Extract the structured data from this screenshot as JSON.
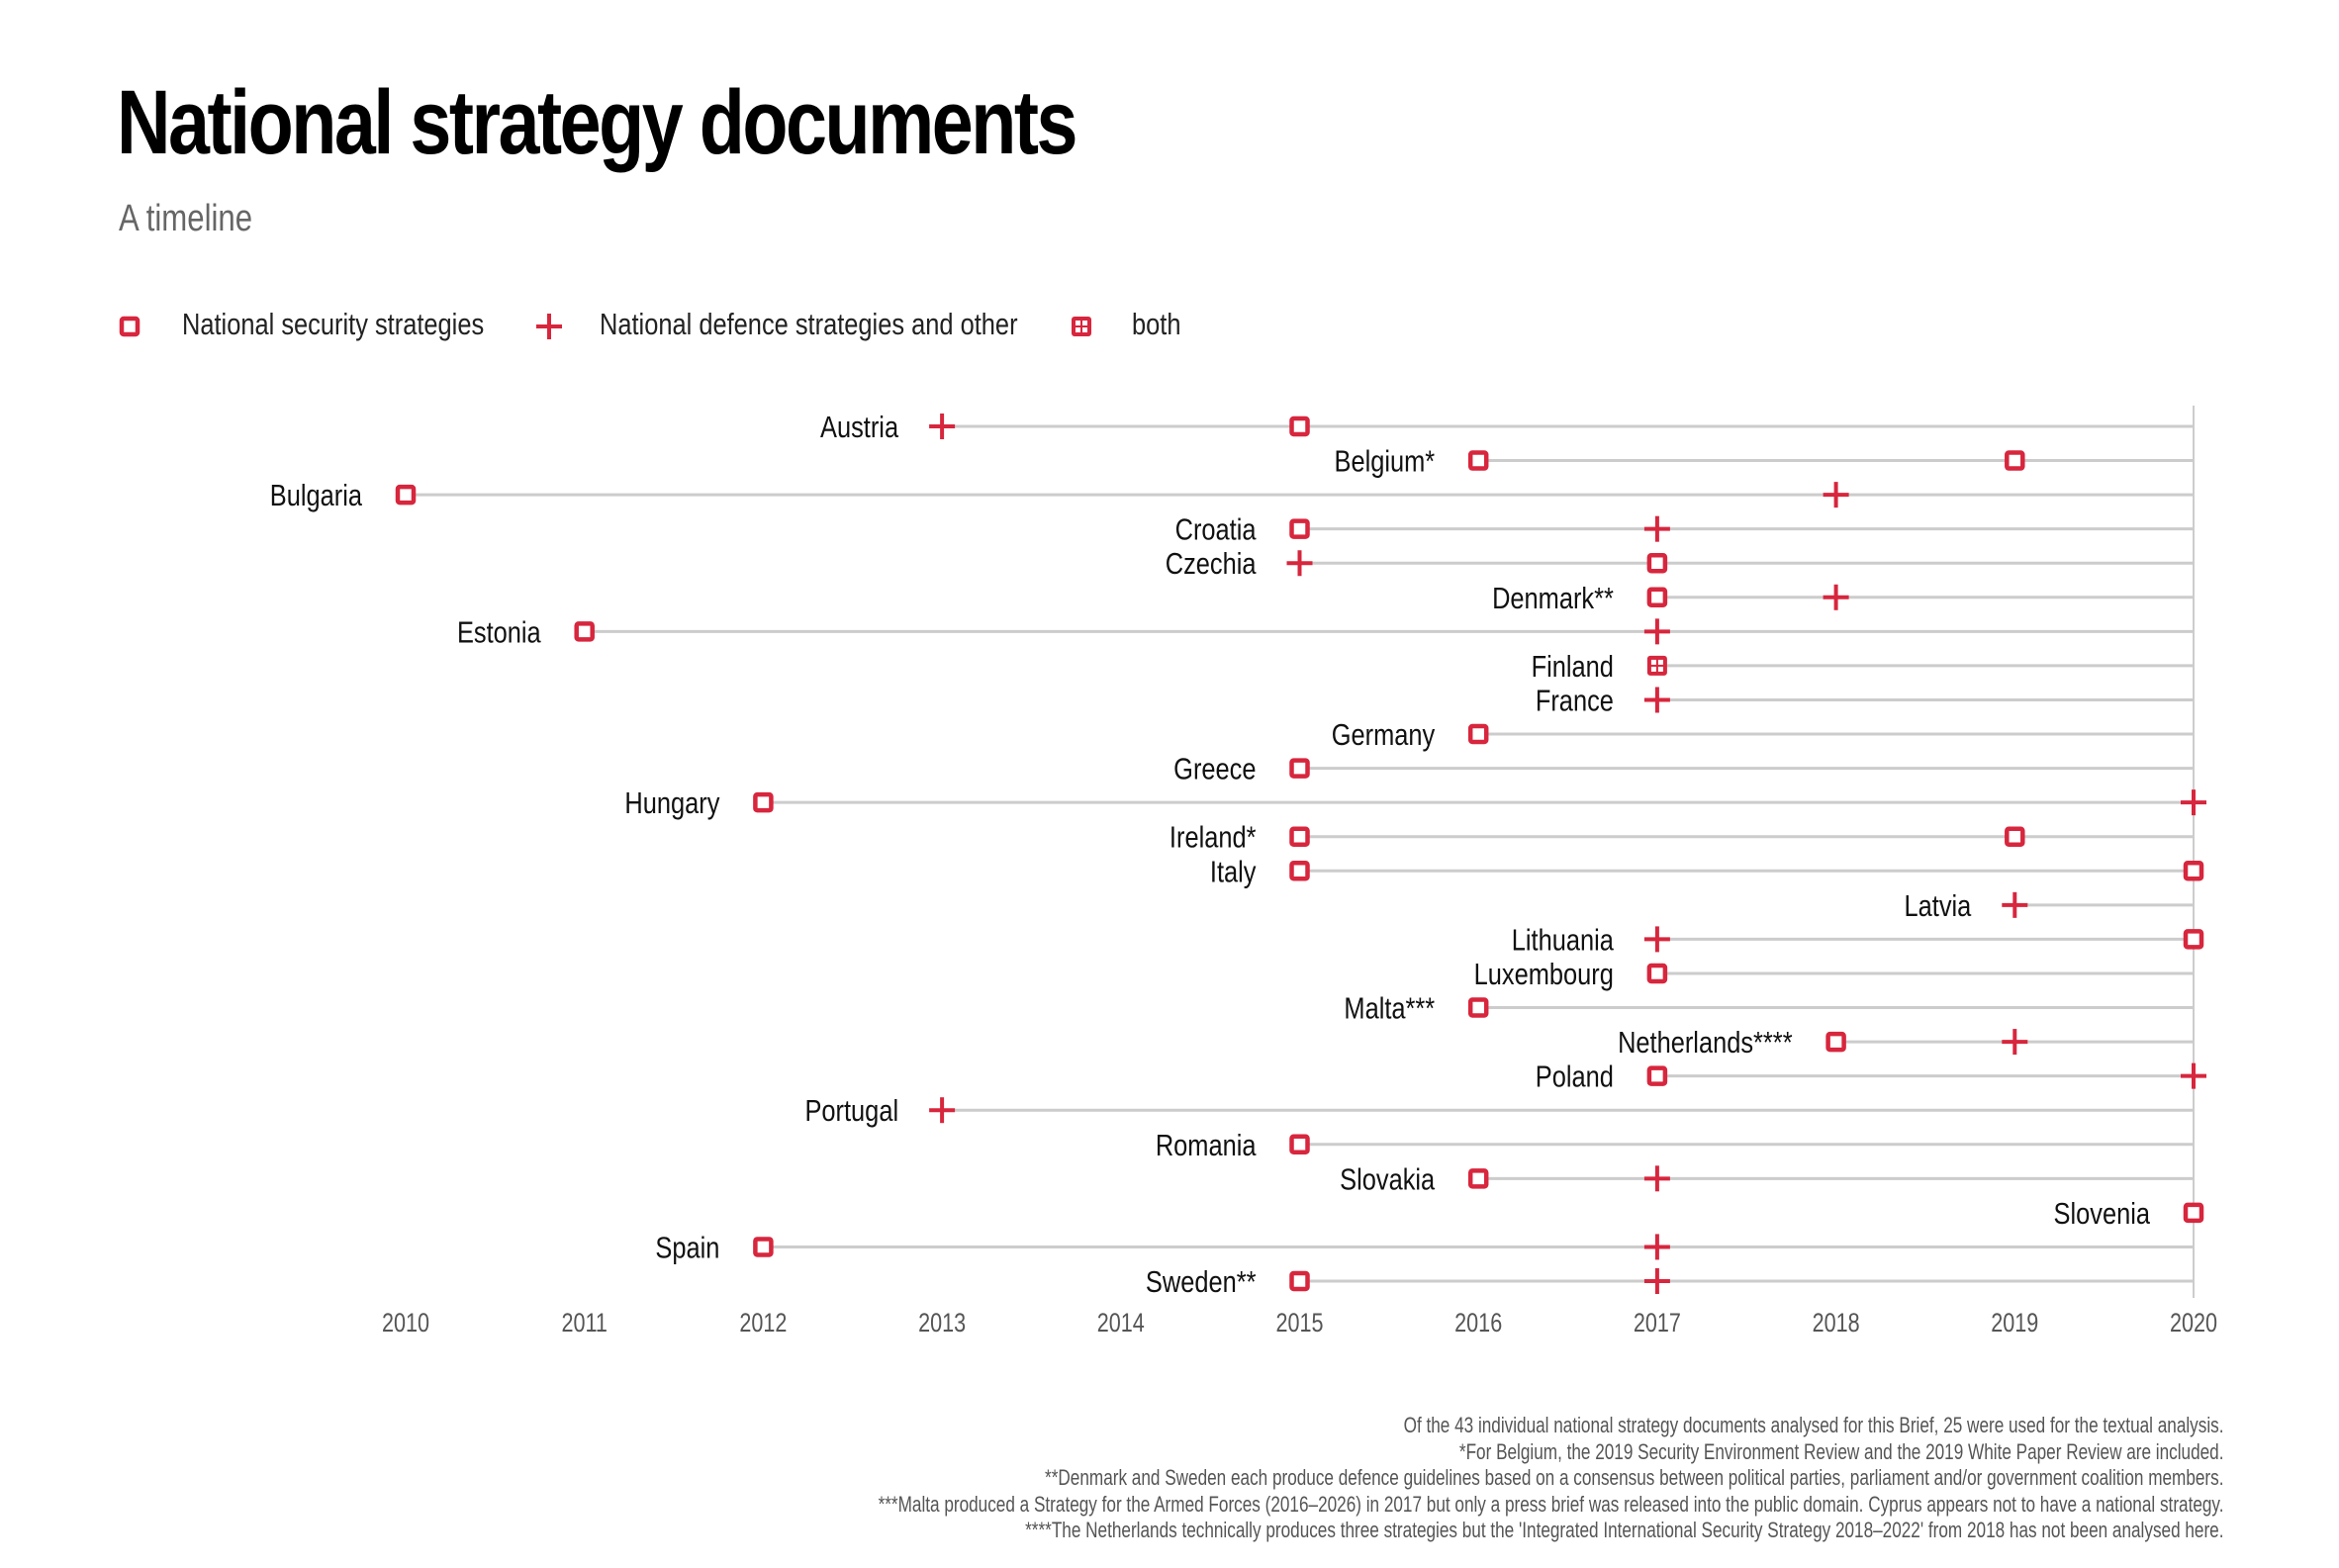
{
  "title": "National strategy documents",
  "subtitle": "A timeline",
  "colors": {
    "marker": "#d7263d",
    "gridline": "#cccccc",
    "axis_line": "#cccccc",
    "label": "#111111",
    "tick_label": "#555555",
    "footnote": "#555555"
  },
  "legend": [
    {
      "symbol": "square",
      "label": "National security strategies"
    },
    {
      "symbol": "plus",
      "label": "National defence strategies and other"
    },
    {
      "symbol": "both",
      "label": "both"
    }
  ],
  "chart_data": {
    "type": "scatter",
    "title": "National strategy documents",
    "subtitle": "A timeline",
    "xlabel": "",
    "ylabel": "",
    "xlim": [
      2010,
      2020
    ],
    "x_ticks": [
      "2010",
      "2011",
      "2012",
      "2013",
      "2014",
      "2015",
      "2016",
      "2017",
      "2018",
      "2019",
      "2020"
    ],
    "grid": false,
    "legend_position": "top-left",
    "series_names": {
      "square": "National security strategies",
      "plus": "National defence strategies and other",
      "both": "both"
    },
    "rows": [
      {
        "country": "Austria",
        "docs": [
          {
            "year": 2013,
            "type": "plus"
          },
          {
            "year": 2015,
            "type": "square"
          }
        ]
      },
      {
        "country": "Belgium*",
        "docs": [
          {
            "year": 2016,
            "type": "square"
          },
          {
            "year": 2019,
            "type": "square"
          }
        ]
      },
      {
        "country": "Bulgaria",
        "docs": [
          {
            "year": 2010,
            "type": "square"
          },
          {
            "year": 2018,
            "type": "plus"
          }
        ]
      },
      {
        "country": "Croatia",
        "docs": [
          {
            "year": 2015,
            "type": "square"
          },
          {
            "year": 2017,
            "type": "plus"
          }
        ]
      },
      {
        "country": "Czechia",
        "docs": [
          {
            "year": 2015,
            "type": "plus"
          },
          {
            "year": 2017,
            "type": "square"
          }
        ]
      },
      {
        "country": "Denmark**",
        "docs": [
          {
            "year": 2017,
            "type": "square"
          },
          {
            "year": 2018,
            "type": "plus"
          }
        ]
      },
      {
        "country": "Estonia",
        "docs": [
          {
            "year": 2011,
            "type": "square"
          },
          {
            "year": 2017,
            "type": "plus"
          }
        ]
      },
      {
        "country": "Finland",
        "docs": [
          {
            "year": 2017,
            "type": "both"
          }
        ]
      },
      {
        "country": "France",
        "docs": [
          {
            "year": 2017,
            "type": "plus"
          }
        ]
      },
      {
        "country": "Germany",
        "docs": [
          {
            "year": 2016,
            "type": "square"
          }
        ]
      },
      {
        "country": "Greece",
        "docs": [
          {
            "year": 2015,
            "type": "square"
          }
        ]
      },
      {
        "country": "Hungary",
        "docs": [
          {
            "year": 2012,
            "type": "square"
          },
          {
            "year": 2020,
            "type": "plus"
          }
        ]
      },
      {
        "country": "Ireland*",
        "docs": [
          {
            "year": 2015,
            "type": "square"
          },
          {
            "year": 2019,
            "type": "square"
          }
        ]
      },
      {
        "country": "Italy",
        "docs": [
          {
            "year": 2015,
            "type": "square"
          },
          {
            "year": 2020,
            "type": "square"
          }
        ]
      },
      {
        "country": "Latvia",
        "docs": [
          {
            "year": 2019,
            "type": "plus"
          }
        ]
      },
      {
        "country": "Lithuania",
        "docs": [
          {
            "year": 2017,
            "type": "plus"
          },
          {
            "year": 2020,
            "type": "square"
          }
        ]
      },
      {
        "country": "Luxembourg",
        "docs": [
          {
            "year": 2017,
            "type": "square"
          }
        ]
      },
      {
        "country": "Malta***",
        "docs": [
          {
            "year": 2016,
            "type": "square"
          }
        ]
      },
      {
        "country": "Netherlands****",
        "docs": [
          {
            "year": 2018,
            "type": "square"
          },
          {
            "year": 2019,
            "type": "plus"
          }
        ]
      },
      {
        "country": "Poland",
        "docs": [
          {
            "year": 2017,
            "type": "square"
          },
          {
            "year": 2020,
            "type": "plus"
          }
        ]
      },
      {
        "country": "Portugal",
        "docs": [
          {
            "year": 2013,
            "type": "plus"
          }
        ]
      },
      {
        "country": "Romania",
        "docs": [
          {
            "year": 2015,
            "type": "square"
          }
        ]
      },
      {
        "country": "Slovakia",
        "docs": [
          {
            "year": 2016,
            "type": "square"
          },
          {
            "year": 2017,
            "type": "plus"
          }
        ]
      },
      {
        "country": "Slovenia",
        "docs": [
          {
            "year": 2020,
            "type": "square"
          }
        ]
      },
      {
        "country": "Spain",
        "docs": [
          {
            "year": 2012,
            "type": "square"
          },
          {
            "year": 2017,
            "type": "plus"
          }
        ]
      },
      {
        "country": "Sweden**",
        "docs": [
          {
            "year": 2015,
            "type": "square"
          },
          {
            "year": 2017,
            "type": "plus"
          }
        ]
      }
    ]
  },
  "footnotes": [
    "Of the 43 individual national strategy documents analysed for this Brief, 25 were used for the textual analysis.",
    "*For Belgium, the 2019 Security Environment Review and the 2019 White Paper Review are included.",
    "**Denmark and Sweden each produce defence guidelines based on a consensus between political parties, parliament and/or government coalition members.",
    "***Malta produced a Strategy for the Armed Forces (2016–2026) in 2017 but only a press brief was released into the public domain. Cyprus appears not to have a national strategy.",
    "****The Netherlands technically produces three strategies but the 'Integrated International Security Strategy 2018–2022' from 2018 has not been analysed here."
  ]
}
